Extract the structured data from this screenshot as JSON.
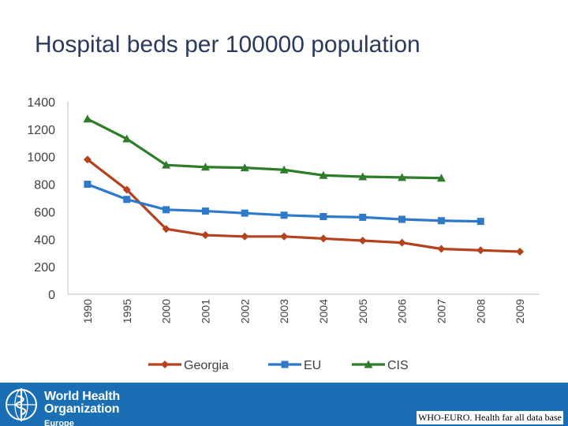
{
  "title": "Hospital beds per 100000 population",
  "chart_data": {
    "type": "line",
    "categories": [
      "1990",
      "1995",
      "2000",
      "2001",
      "2002",
      "2003",
      "2004",
      "2005",
      "2006",
      "2007",
      "2008",
      "2009"
    ],
    "ylim": [
      0,
      1400
    ],
    "yticks": [
      0,
      200,
      400,
      600,
      800,
      1000,
      1200,
      1400
    ],
    "grid": false,
    "legend_position": "bottom",
    "series": [
      {
        "name": "Georgia",
        "color": "#b5411e",
        "marker": "diamond",
        "values": [
          980,
          760,
          475,
          430,
          420,
          420,
          405,
          390,
          375,
          330,
          320,
          310
        ]
      },
      {
        "name": "EU",
        "color": "#2e79c9",
        "marker": "square",
        "values": [
          800,
          690,
          615,
          605,
          590,
          575,
          565,
          560,
          545,
          535,
          530,
          null
        ]
      },
      {
        "name": "CIS",
        "color": "#2f7c2a",
        "marker": "triangle",
        "values": [
          1275,
          1130,
          940,
          925,
          920,
          905,
          865,
          855,
          850,
          845,
          null,
          null
        ]
      }
    ]
  },
  "footer": {
    "org_line1": "World Health",
    "org_line2": "Organization",
    "region": "Europe",
    "source": "WHO-EURO. Health far all data base",
    "logo": "who-emblem-icon"
  }
}
